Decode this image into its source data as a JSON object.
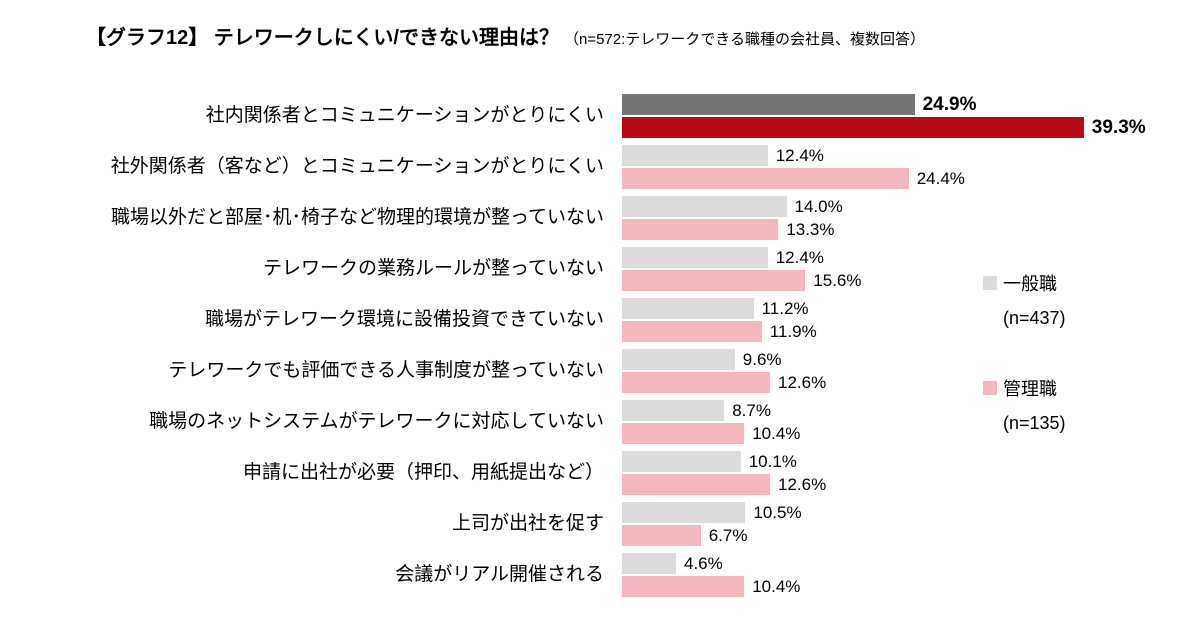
{
  "title": {
    "main": "【グラフ12】 テレワークしにくい/できない理由は？",
    "sub": "（n=572:テレワークできる職種の会社員、複数回答）"
  },
  "chart_data": {
    "type": "bar",
    "orientation": "horizontal",
    "title": "【グラフ12】 テレワークしにくい/できない理由は？（n=572:テレワークできる職種の会社員、複数回答）",
    "categories": [
      "社内関係者とコミュニケーションがとりにくい",
      "社外関係者（客など）とコミュニケーションがとりにくい",
      "職場以外だと部屋･机･椅子など物理的環境が整っていない",
      "テレワークの業務ルールが整っていない",
      "職場がテレワーク環境に設備投資できていない",
      "テレワークでも評価できる人事制度が整っていない",
      "職場のネットシステムがテレワークに対応していない",
      "申請に出社が必要（押印、用紙提出など）",
      "上司が出社を促す",
      "会議がリアル開催される"
    ],
    "series": [
      {
        "name": "一般職",
        "n_label": "(n=437)",
        "values": [
          24.9,
          12.4,
          14.0,
          12.4,
          11.2,
          9.6,
          8.7,
          10.1,
          10.5,
          4.6
        ]
      },
      {
        "name": "管理職",
        "n_label": "(n=135)",
        "values": [
          39.3,
          24.4,
          13.3,
          15.6,
          11.9,
          12.6,
          10.4,
          12.6,
          6.7,
          10.4
        ]
      }
    ],
    "value_suffix": "%",
    "xlim": [
      0,
      42
    ],
    "grid": false,
    "legend_position": "right",
    "highlighted_category_index": 0,
    "colors": {
      "series1": "#dcdcdc",
      "series1_highlight": "#757575",
      "series2": "#f3b7bd",
      "series2_highlight": "#b70a14"
    }
  }
}
